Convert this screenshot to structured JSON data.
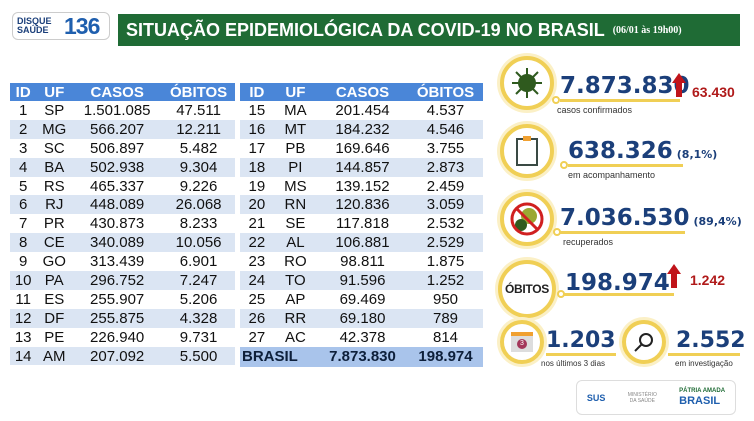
{
  "logo": {
    "text": "DISQUE SAÚDE",
    "number": "136"
  },
  "header": {
    "title": "SITUAÇÃO EPIDEMIOLÓGICA DA COVID-19 NO BRASIL",
    "date": "(06/01 às 19h00)"
  },
  "table": {
    "columns": [
      "ID",
      "UF",
      "CASOS",
      "ÓBITOS"
    ],
    "left": [
      [
        "1",
        "SP",
        "1.501.085",
        "47.511"
      ],
      [
        "2",
        "MG",
        "566.207",
        "12.211"
      ],
      [
        "3",
        "SC",
        "506.897",
        "5.482"
      ],
      [
        "4",
        "BA",
        "502.938",
        "9.304"
      ],
      [
        "5",
        "RS",
        "465.337",
        "9.226"
      ],
      [
        "6",
        "RJ",
        "448.089",
        "26.068"
      ],
      [
        "7",
        "PR",
        "430.873",
        "8.233"
      ],
      [
        "8",
        "CE",
        "340.089",
        "10.056"
      ],
      [
        "9",
        "GO",
        "313.439",
        "6.901"
      ],
      [
        "10",
        "PA",
        "296.752",
        "7.247"
      ],
      [
        "11",
        "ES",
        "255.907",
        "5.206"
      ],
      [
        "12",
        "DF",
        "255.875",
        "4.328"
      ],
      [
        "13",
        "PE",
        "226.940",
        "9.731"
      ],
      [
        "14",
        "AM",
        "207.092",
        "5.500"
      ]
    ],
    "right": [
      [
        "15",
        "MA",
        "201.454",
        "4.537"
      ],
      [
        "16",
        "MT",
        "184.232",
        "4.546"
      ],
      [
        "17",
        "PB",
        "169.646",
        "3.755"
      ],
      [
        "18",
        "PI",
        "144.857",
        "2.873"
      ],
      [
        "19",
        "MS",
        "139.152",
        "2.459"
      ],
      [
        "20",
        "RN",
        "120.836",
        "3.059"
      ],
      [
        "21",
        "SE",
        "117.818",
        "2.532"
      ],
      [
        "22",
        "AL",
        "106.881",
        "2.529"
      ],
      [
        "23",
        "RO",
        "98.811",
        "1.875"
      ],
      [
        "24",
        "TO",
        "91.596",
        "1.252"
      ],
      [
        "25",
        "AP",
        "69.469",
        "950"
      ],
      [
        "26",
        "RR",
        "69.180",
        "789"
      ],
      [
        "27",
        "AC",
        "42.378",
        "814"
      ]
    ],
    "total": {
      "label": "BRASIL",
      "casos": "7.873.830",
      "obitos": "198.974"
    }
  },
  "stats": {
    "confirmed": {
      "value": "7.873.830",
      "delta": "63.430",
      "label": "casos confirmados"
    },
    "monitoring": {
      "value": "638.326",
      "pct": "(8,1%)",
      "label": "em acompanhamento"
    },
    "recovered": {
      "value": "7.036.530",
      "pct": "(89,4%)",
      "label": "recuperados"
    },
    "deaths": {
      "badge": "ÓBITOS",
      "value": "198.974",
      "delta": "1.242"
    },
    "recent": {
      "value": "1.203",
      "label": "nos últimos 3 dias",
      "calendar": "3"
    },
    "investigation": {
      "value": "2.552",
      "label": "em investigação"
    }
  },
  "footer": {
    "sus": "SUS",
    "ministry": "MINISTÉRIO DA SAÚDE",
    "gov_top": "PÁTRIA AMADA",
    "gov": "BRASIL"
  },
  "colors": {
    "green": "#1f6b35",
    "blue": "#4a86d8",
    "navy": "#1b3f7a",
    "red": "#c0141a",
    "gold": "#f0cf55"
  }
}
